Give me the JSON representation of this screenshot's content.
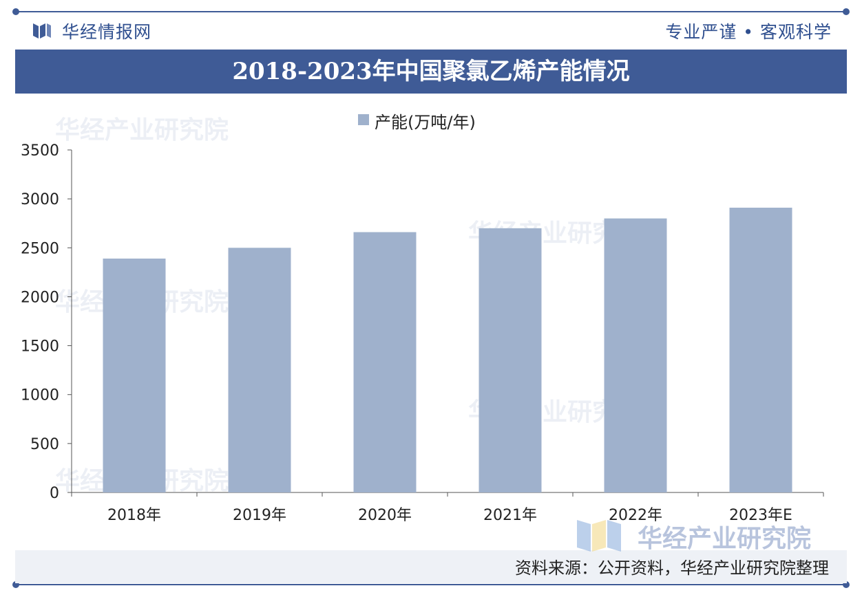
{
  "header": {
    "brand": "华经情报网",
    "slogan": "专业严谨 • 客观科学"
  },
  "title": "2018-2023年中国聚氯乙烯产能情况",
  "legend": {
    "label": "产能(万吨/年)"
  },
  "watermark": "华经产业研究院",
  "source": "资料来源：公开资料，华经产业研究院整理",
  "colors": {
    "accent": "#3f5b96",
    "bar": "#9fb1cc",
    "footer_bg": "#eef1f6"
  },
  "chart_data": {
    "type": "bar",
    "categories": [
      "2018年",
      "2019年",
      "2020年",
      "2021年",
      "2022年",
      "2023年E"
    ],
    "series": [
      {
        "name": "产能(万吨/年)",
        "values": [
          2390,
          2500,
          2660,
          2700,
          2800,
          2910
        ]
      }
    ],
    "ylim": [
      0,
      3500
    ],
    "yticks": [
      0,
      500,
      1000,
      1500,
      2000,
      2500,
      3000,
      3500
    ],
    "grid": false,
    "legend_position": "top-center"
  }
}
